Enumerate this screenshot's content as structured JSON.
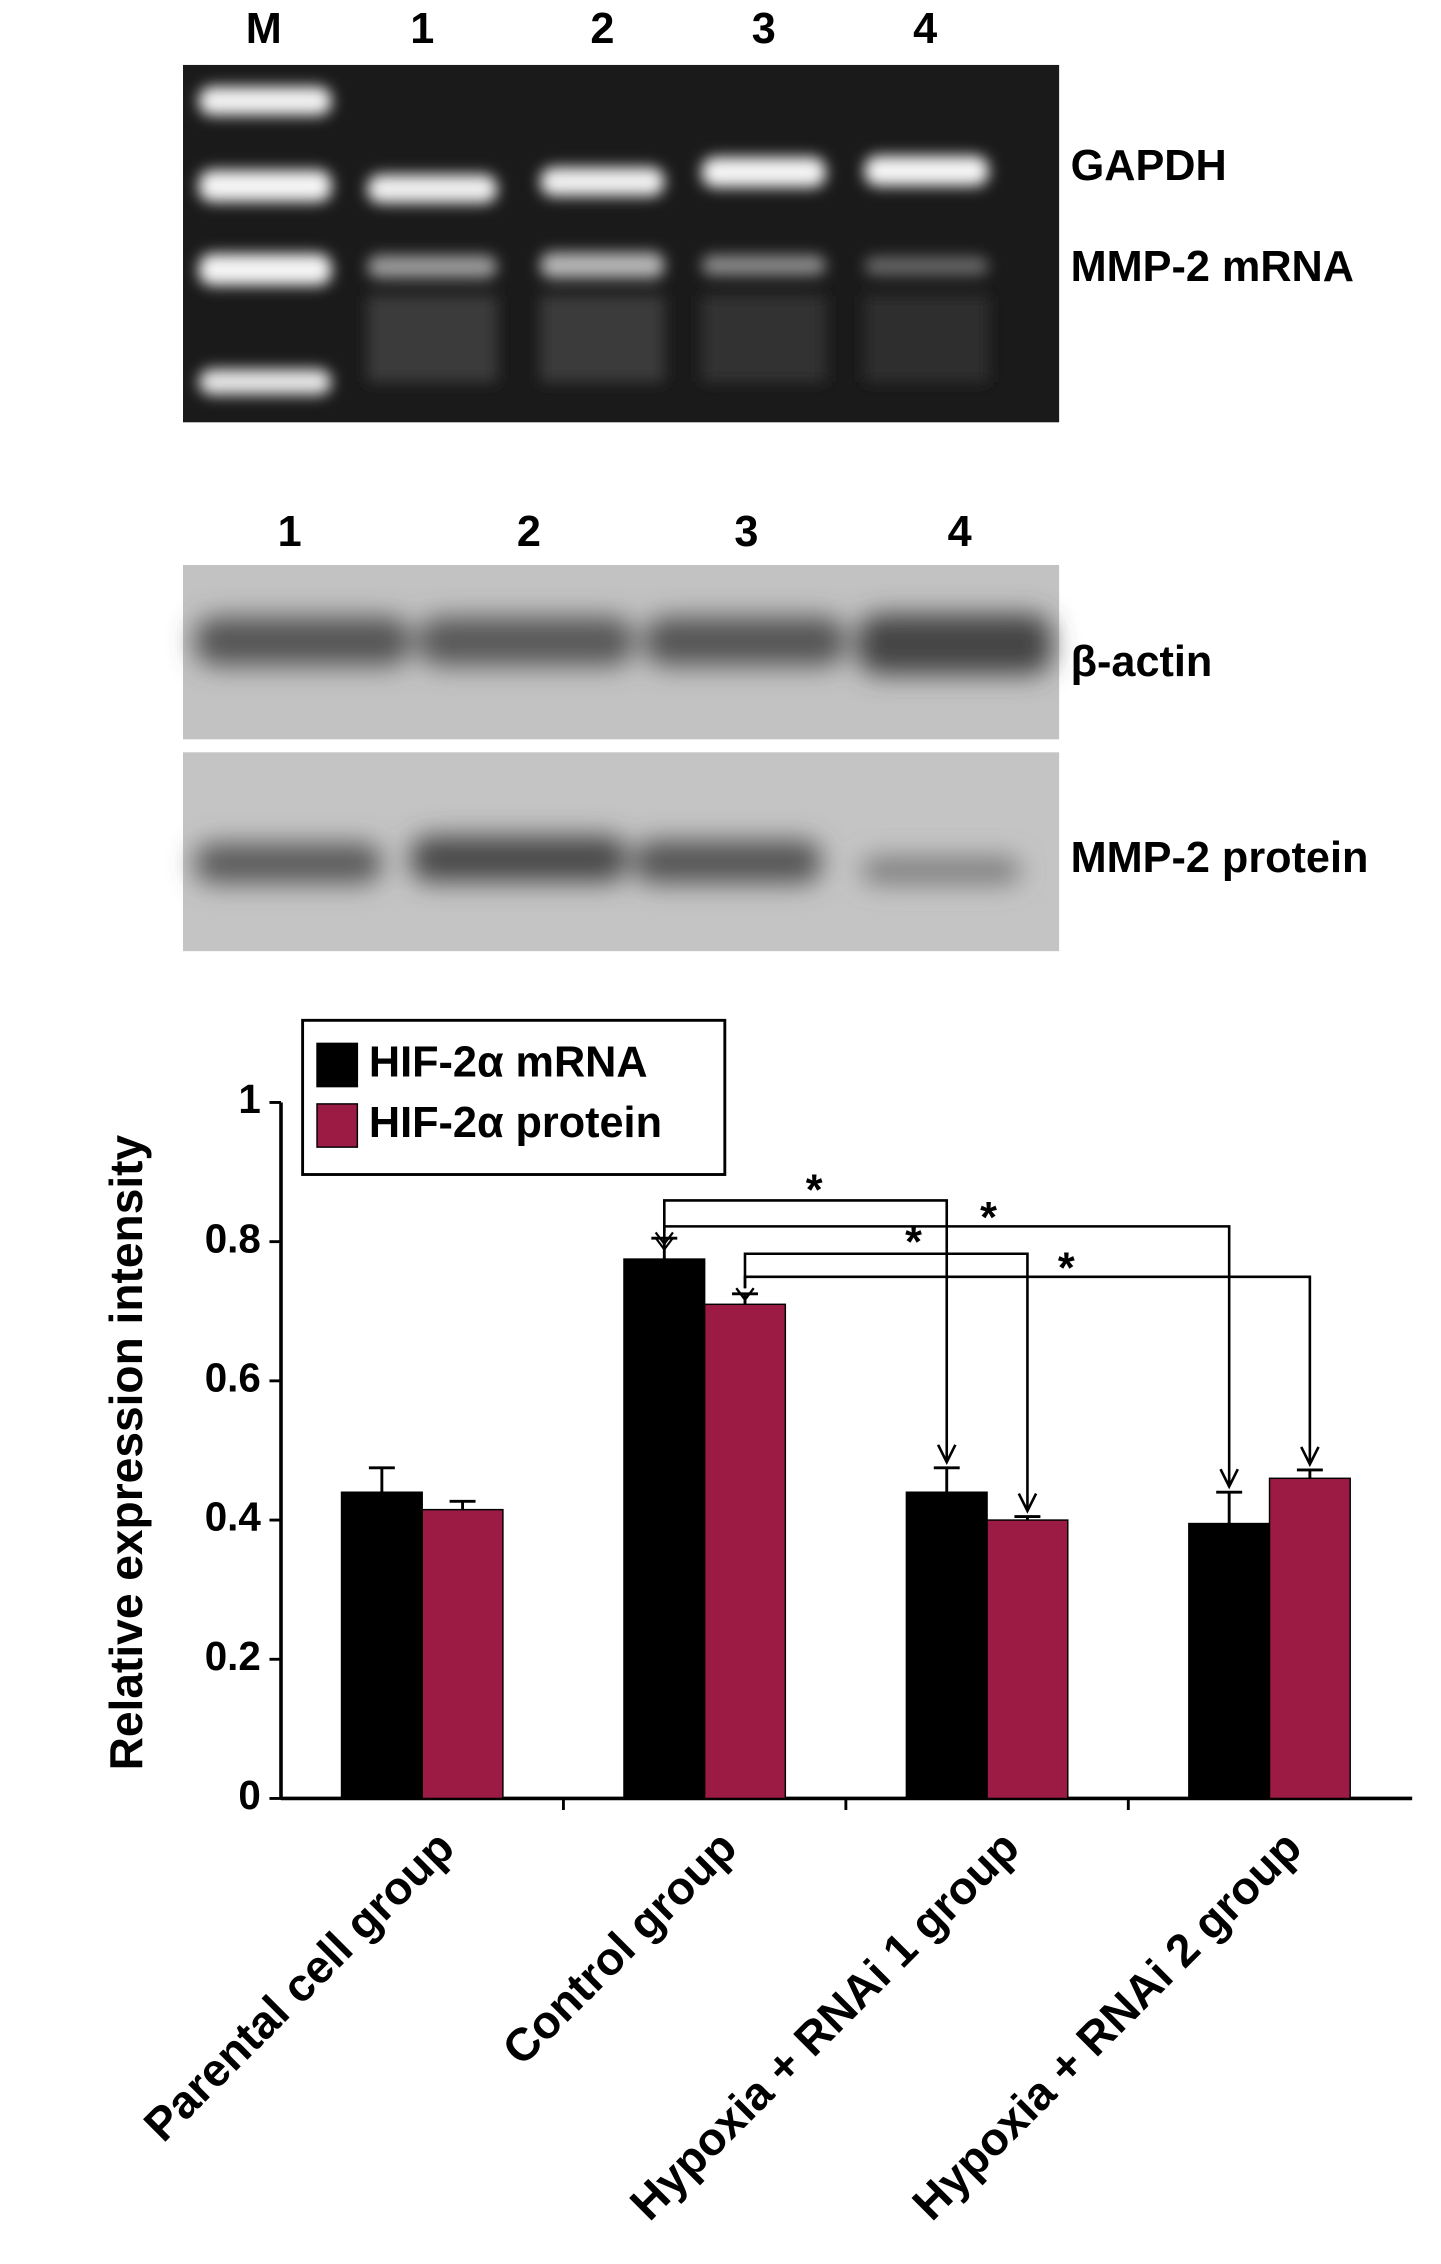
{
  "gel_panels": {
    "rt_pcr": {
      "lanes": [
        "M",
        "1",
        "2",
        "3",
        "4"
      ],
      "bands": [
        "GAPDH",
        "MMP-2 mRNA"
      ]
    },
    "western_blot": {
      "lanes": [
        "1",
        "2",
        "3",
        "4"
      ],
      "bands": [
        "β-actin",
        "MMP-2 protein"
      ]
    }
  },
  "chart_data": {
    "type": "bar",
    "ylabel": "Relative expression intensity",
    "categories": [
      "Parental cell group",
      "Control group",
      "Hypoxia + RNAi 1 group",
      "Hypoxia + RNAi 2 group"
    ],
    "series": [
      {
        "name": "HIF-2α mRNA",
        "color": "#000000",
        "values": [
          0.44,
          0.775,
          0.44,
          0.395
        ],
        "errors": [
          0.035,
          0.03,
          0.035,
          0.045
        ]
      },
      {
        "name": "HIF-2α protein",
        "color": "#9b1b45",
        "values": [
          0.415,
          0.71,
          0.4,
          0.46
        ],
        "errors": [
          0.012,
          0.015,
          0.005,
          0.012
        ]
      }
    ],
    "ylim": [
      0,
      1
    ],
    "yticks": [
      0,
      0.2,
      0.4,
      0.6,
      0.8,
      1
    ],
    "legend": "upper left",
    "annotations": [
      "*",
      "*",
      "*",
      "*"
    ]
  }
}
